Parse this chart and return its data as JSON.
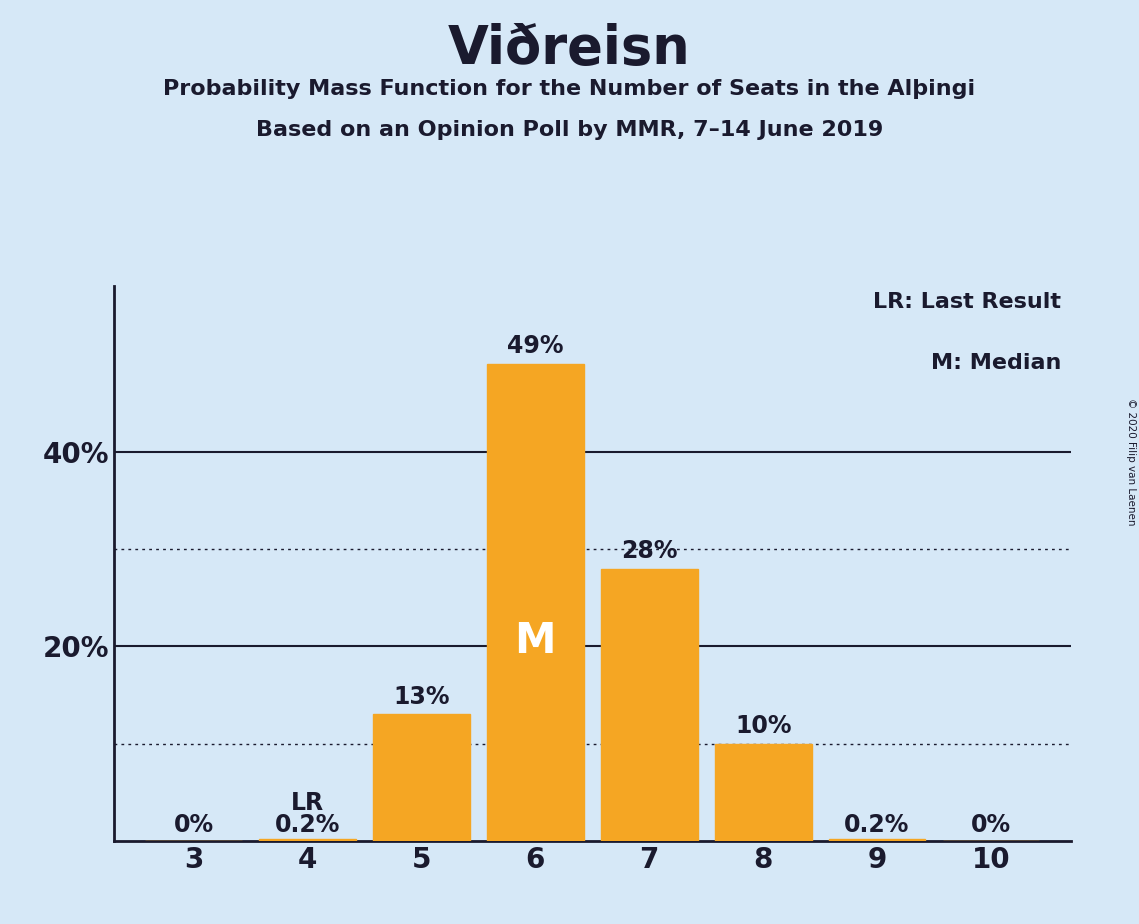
{
  "title": "Viðreisn",
  "subtitle1": "Probability Mass Function for the Number of Seats in the Alþingi",
  "subtitle2": "Based on an Opinion Poll by MMR, 7–14 June 2019",
  "copyright": "© 2020 Filip van Laenen",
  "seats": [
    3,
    4,
    5,
    6,
    7,
    8,
    9,
    10
  ],
  "probabilities": [
    0.0,
    0.002,
    0.13,
    0.49,
    0.28,
    0.1,
    0.002,
    0.0
  ],
  "bar_labels": [
    "0%",
    "0.2%",
    "13%",
    "49%",
    "28%",
    "10%",
    "0.2%",
    "0%"
  ],
  "bar_color": "#F5A623",
  "background_color": "#D6E8F7",
  "median_seat": 6,
  "lr_seat": 4,
  "legend_lr": "LR: Last Result",
  "legend_m": "M: Median",
  "ytick_positions": [
    0.0,
    0.1,
    0.2,
    0.3,
    0.4,
    0.5
  ],
  "ytick_labels": [
    "",
    "",
    "20%",
    "",
    "40%",
    ""
  ],
  "solid_gridlines": [
    0.2,
    0.4
  ],
  "dotted_gridlines": [
    0.1,
    0.3
  ],
  "ylim": [
    0,
    0.57
  ],
  "xlim": [
    2.3,
    10.7
  ]
}
